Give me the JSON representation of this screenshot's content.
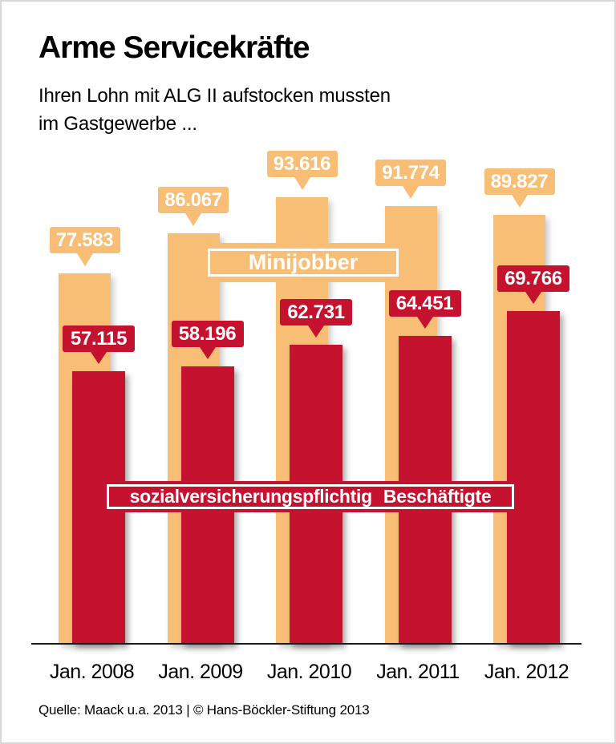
{
  "page": {
    "title": "Arme Servicekräfte",
    "subtitle_line1": "Ihren Lohn mit ALG II aufstocken mussten",
    "subtitle_line2": "im Gastgewerbe ...",
    "footer": "Quelle: Maack u.a. 2013 | © Hans-Böckler-Stiftung 2013"
  },
  "colors": {
    "minijobber_orange": "#F9BE75",
    "beschaeftigte_red": "#C5122F",
    "axis": "#1A1A1A",
    "label_text": "#FFFFFF",
    "background": "#FFFFFF",
    "frame_border": "#D8D8D8"
  },
  "chart_data": {
    "type": "bar",
    "categories": [
      "Jan. 2008",
      "Jan. 2009",
      "Jan. 2010",
      "Jan. 2011",
      "Jan. 2012"
    ],
    "series": [
      {
        "name": "Minijobber",
        "color": "#F9BE75",
        "values": [
          77583,
          86067,
          93616,
          91774,
          89827
        ],
        "display_values": [
          "77.583",
          "86.067",
          "93.616",
          "91.774",
          "89.827"
        ]
      },
      {
        "name": "sozialversicherungspflichtig Beschäftigte",
        "color": "#C5122F",
        "values": [
          57115,
          58196,
          62731,
          64451,
          69766
        ],
        "display_values": [
          "57.115",
          "58.196",
          "62.731",
          "64.451",
          "69.766"
        ]
      }
    ],
    "ylim": [
      0,
      100000
    ],
    "grid": false,
    "xlabel": "",
    "ylabel": "",
    "legend_position": "on-chart bands",
    "value_label_style": "speech-bubble callouts above each bar"
  }
}
